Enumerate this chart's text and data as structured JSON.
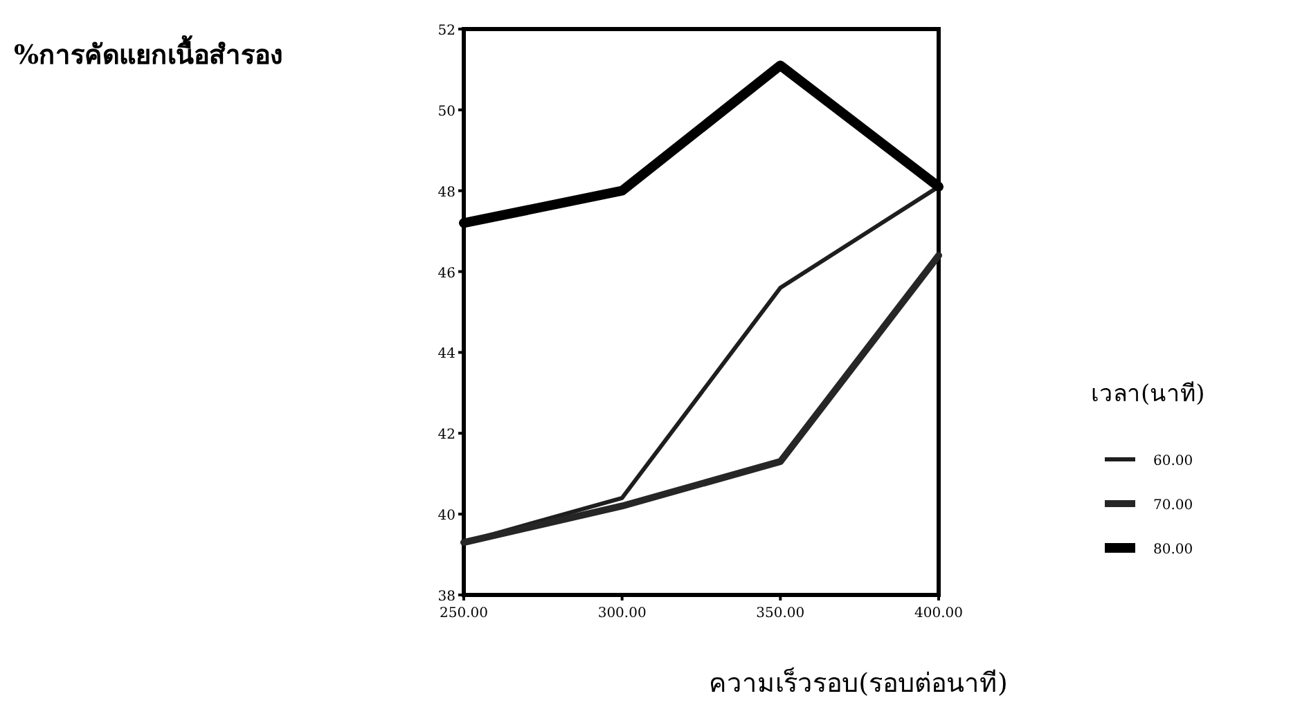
{
  "chart_data": {
    "type": "line",
    "annotations": [
      "%การคัดแยกเนื้อสำรอง"
    ],
    "xlabel": "ความเร็วรอบ(รอบต่อนาที)",
    "legend_title": "เวลา(นาที)",
    "x": [
      250,
      300,
      350,
      400
    ],
    "xlim": [
      250,
      400
    ],
    "xticks": [
      {
        "value": 250,
        "label": "250.00"
      },
      {
        "value": 300,
        "label": "300.00"
      },
      {
        "value": 350,
        "label": "350.00"
      },
      {
        "value": 400,
        "label": "400.00"
      }
    ],
    "ylim": [
      38,
      52
    ],
    "yticks": [
      38,
      40,
      42,
      44,
      46,
      48,
      50,
      52
    ],
    "series": [
      {
        "name": "60.00",
        "color": "#1e1e1e",
        "values": [
          39.3,
          40.4,
          45.6,
          48.1
        ]
      },
      {
        "name": "70.00",
        "color": "#262626",
        "values": [
          39.3,
          40.2,
          41.3,
          46.4
        ]
      },
      {
        "name": "80.00",
        "color": "#000000",
        "values": [
          47.2,
          48.0,
          51.1,
          48.1
        ]
      }
    ],
    "legend": "right",
    "grid": false,
    "marker": "none",
    "line_style": "solid"
  }
}
